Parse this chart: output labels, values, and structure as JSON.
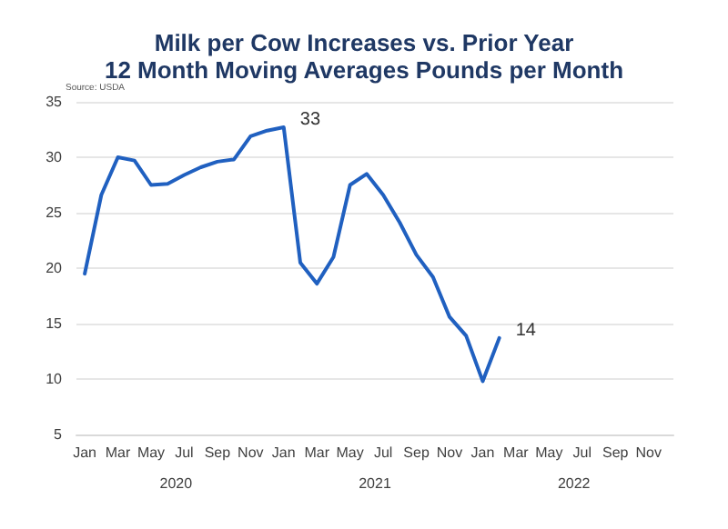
{
  "chart_data": {
    "type": "line",
    "title": "Milk per Cow Increases vs. Prior Year",
    "subtitle": "12 Month Moving Averages Pounds per Month",
    "categories": [
      "Jan",
      null,
      "Mar",
      null,
      "May",
      null,
      "Jul",
      null,
      "Sep",
      null,
      "Nov",
      null,
      "Jan",
      null,
      "Mar",
      null,
      "May",
      null,
      "Jul",
      null,
      "Sep",
      null,
      "Nov",
      null,
      "Jan",
      null,
      "Mar",
      null,
      "May",
      null,
      "Jul",
      null,
      "Sep",
      null,
      "Nov",
      null
    ],
    "series": [
      {
        "color": "#2060c0",
        "values": [
          19.5,
          26.6,
          30.0,
          29.7,
          27.5,
          27.6,
          28.4,
          29.1,
          29.6,
          29.8,
          31.9,
          32.4,
          32.7,
          20.5,
          18.6,
          21.0,
          27.5,
          28.5,
          26.6,
          24.1,
          21.2,
          19.2,
          15.6,
          13.9,
          9.8,
          13.7,
          null,
          null,
          null,
          null,
          null,
          null,
          null,
          null,
          null,
          null
        ],
        "value_labels": [
          null,
          null,
          null,
          null,
          null,
          null,
          null,
          null,
          null,
          null,
          null,
          null,
          "33",
          null,
          null,
          null,
          null,
          null,
          null,
          null,
          null,
          null,
          null,
          null,
          null,
          "14",
          null,
          null,
          null,
          null,
          null,
          null,
          null,
          null,
          null,
          null
        ]
      }
    ],
    "ylim": [
      5,
      35
    ],
    "yticks": [
      5,
      10,
      15,
      20,
      25,
      30,
      35
    ],
    "grid": "y",
    "marker": "none",
    "line_style": "solid",
    "annotations": [
      "Source: USDA",
      "2020",
      "2021",
      "2022"
    ]
  }
}
